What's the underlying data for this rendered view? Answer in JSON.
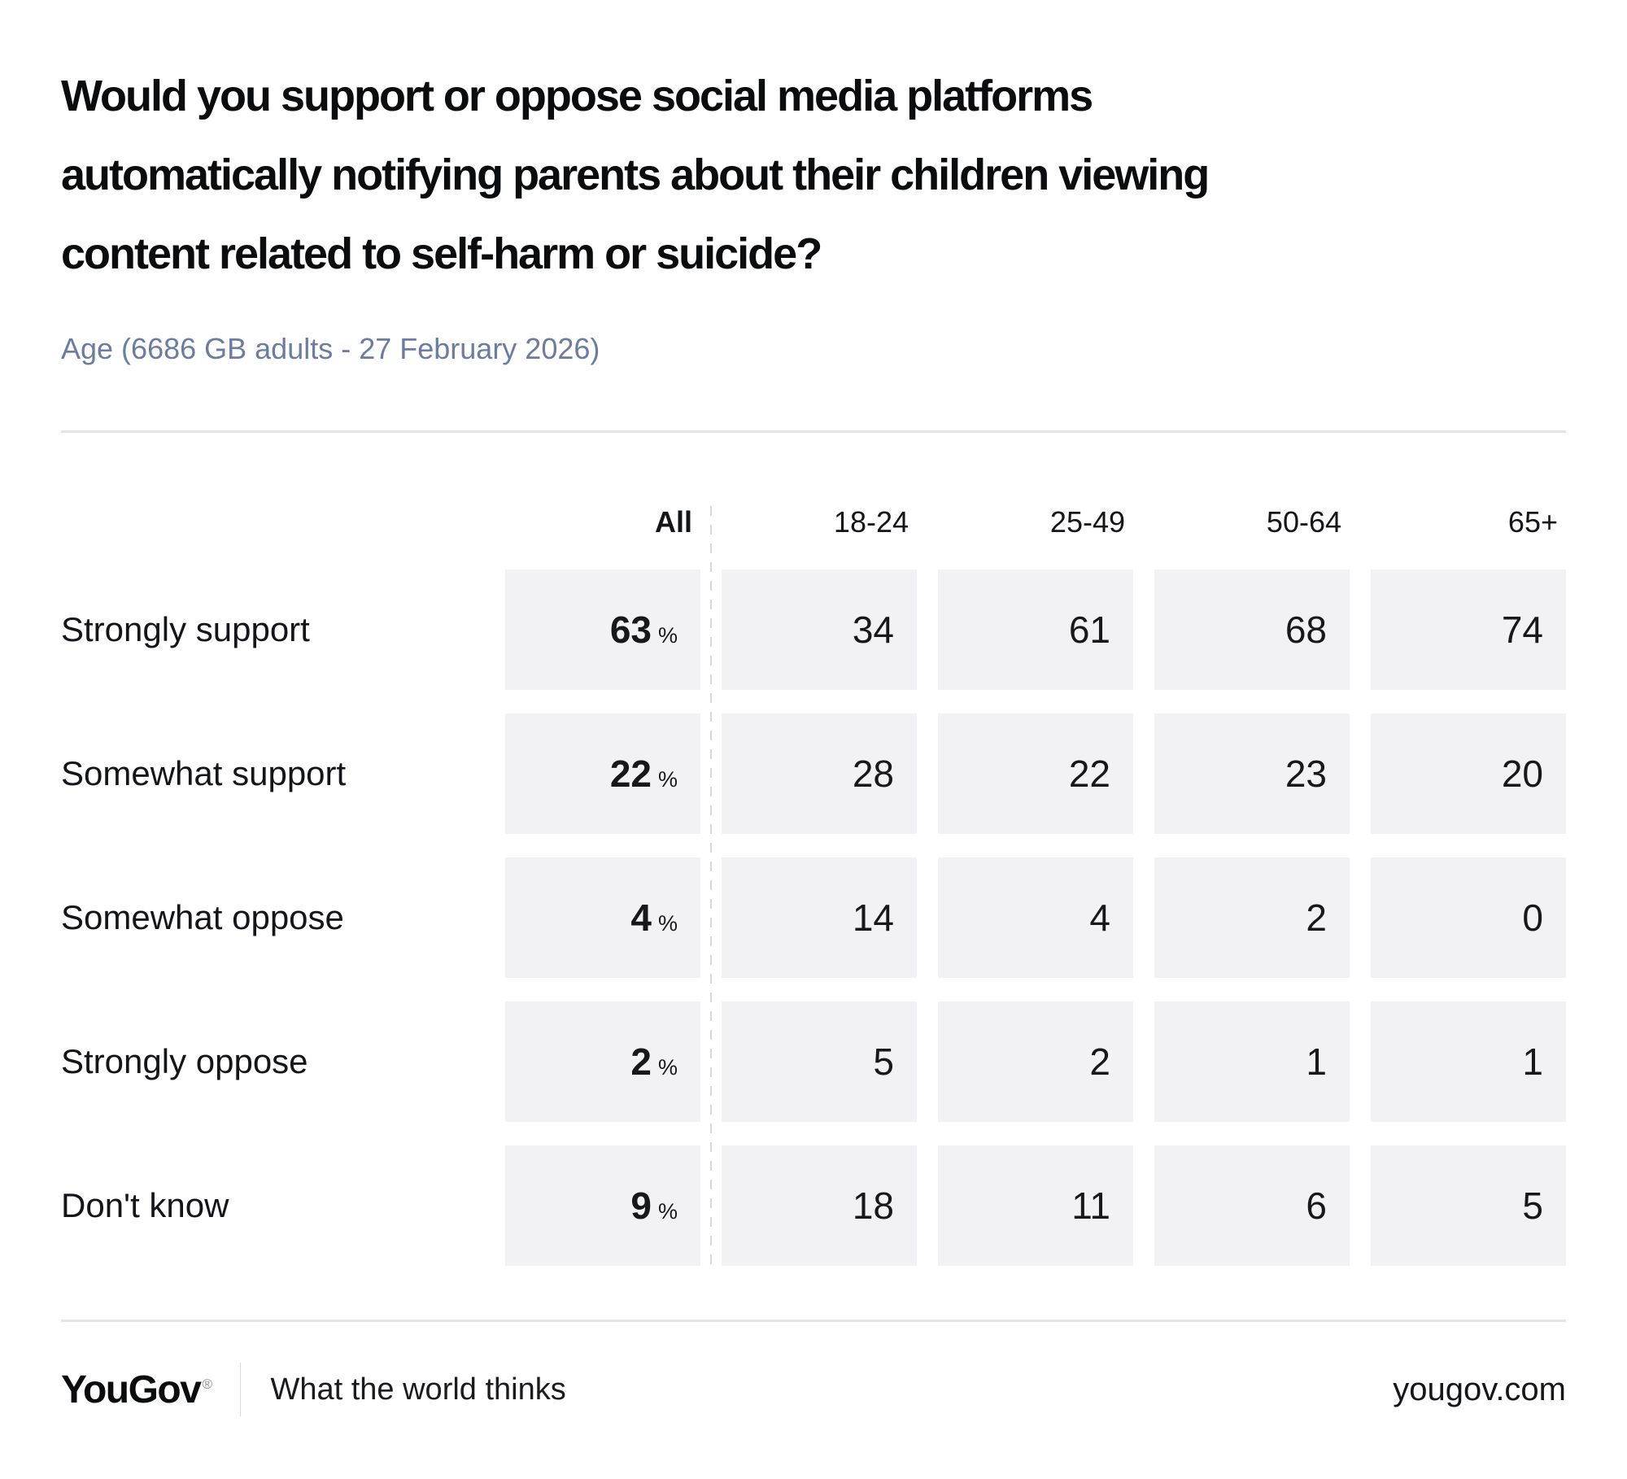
{
  "header": {
    "title_lines": [
      "Would you support or oppose social media platforms",
      "automatically notifying parents about their children viewing",
      "content related to self-harm or suicide?"
    ],
    "subtitle": "Age (6686 GB adults - 27 February 2026)"
  },
  "chart_data": {
    "type": "table",
    "title": "Would you support or oppose social media platforms automatically notifying parents about their children viewing content related to self-harm or suicide?",
    "subtitle": "Age (6686 GB adults - 27 February 2026)",
    "unit": "%",
    "columns": [
      "All",
      "18-24",
      "25-49",
      "50-64",
      "65+"
    ],
    "rows": [
      {
        "label": "Strongly support",
        "all": 63,
        "values": [
          34,
          61,
          68,
          74
        ]
      },
      {
        "label": "Somewhat support",
        "all": 22,
        "values": [
          28,
          22,
          23,
          20
        ]
      },
      {
        "label": "Somewhat oppose",
        "all": 4,
        "values": [
          14,
          4,
          2,
          0
        ]
      },
      {
        "label": "Strongly oppose",
        "all": 2,
        "values": [
          5,
          2,
          1,
          1
        ]
      },
      {
        "label": "Don't know",
        "all": 9,
        "values": [
          18,
          11,
          6,
          5
        ]
      }
    ]
  },
  "footer": {
    "logo": "YouGov",
    "registered_mark": "®",
    "tagline": "What the world thinks",
    "site": "yougov.com"
  },
  "colors": {
    "cell_background": "#f2f2f4",
    "subtitle_text": "#6b7ca1",
    "rule": "#e4e5e9",
    "dashed_divider": "#d7d8dc",
    "text": "#17181a"
  }
}
